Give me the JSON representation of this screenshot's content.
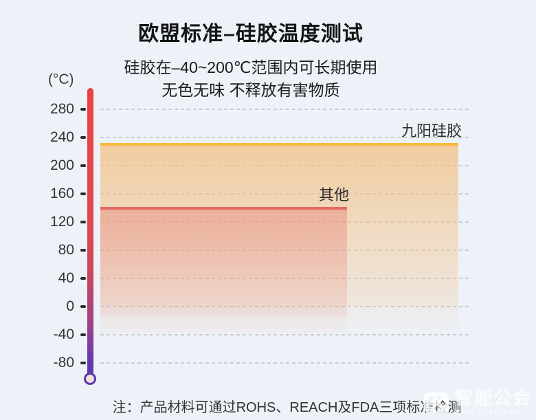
{
  "page": {
    "background_color": "#edf2f9"
  },
  "header": {
    "title": "欧盟标准–硅胶温度测试",
    "subtitle_line1": "硅胶在–40~200℃范围内可长期使用",
    "subtitle_line2": "无色无味 不释放有害物质"
  },
  "chart_data": {
    "type": "area",
    "title": "欧盟标准–硅胶温度测试",
    "unit_label": "(°C)",
    "y_ticks": [
      280,
      240,
      200,
      160,
      120,
      80,
      40,
      0,
      -40,
      -80
    ],
    "ylim": [
      -100,
      300
    ],
    "grid": "horizontal-dashed",
    "legend_position": "labels-above-lines",
    "series": [
      {
        "name": "九阳硅胶",
        "max_temp": 230,
        "min_temp": -40,
        "line_color": "#f7b93e",
        "fill_color": "#f3c084",
        "fill_alpha": 0.75
      },
      {
        "name": "其他",
        "max_temp": 140,
        "min_temp": -40,
        "line_color": "#e4695f",
        "fill_color": "#e8897c",
        "fill_alpha": 0.5
      }
    ],
    "thermometer_colors": {
      "top": "#ee4040",
      "bottom": "#5b35ad"
    }
  },
  "footer": {
    "note": "注：产品材料可通过ROHS、REACH及FDA三项标准检测"
  },
  "watermark": {
    "brand": "智能公会",
    "url": "www.zngh.com"
  }
}
